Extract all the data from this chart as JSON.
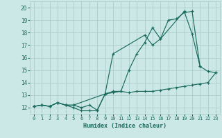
{
  "xlabel": "Humidex (Indice chaleur)",
  "xlim": [
    -0.5,
    23.5
  ],
  "ylim": [
    11.5,
    20.5
  ],
  "xticks": [
    0,
    1,
    2,
    3,
    4,
    5,
    6,
    7,
    8,
    9,
    10,
    11,
    12,
    13,
    14,
    15,
    16,
    17,
    18,
    19,
    20,
    21,
    22,
    23
  ],
  "yticks": [
    12,
    13,
    14,
    15,
    16,
    17,
    18,
    19,
    20
  ],
  "bg_color": "#cce8e6",
  "grid_color": "#aaccca",
  "line_color": "#1a6b5e",
  "line1_x": [
    0,
    1,
    2,
    3,
    4,
    5,
    6,
    7,
    8,
    9,
    10,
    11,
    12,
    13,
    14,
    15,
    16,
    17,
    18,
    19,
    20,
    21,
    22,
    23
  ],
  "line1_y": [
    12.1,
    12.2,
    12.1,
    12.4,
    12.2,
    12.0,
    11.75,
    11.75,
    11.75,
    13.1,
    13.3,
    13.3,
    15.0,
    16.3,
    17.2,
    18.4,
    17.5,
    19.0,
    19.1,
    19.6,
    19.7,
    15.3,
    14.9,
    14.8
  ],
  "line2_x": [
    0,
    1,
    2,
    3,
    4,
    5,
    6,
    7,
    8,
    9,
    10,
    11,
    12,
    13,
    14,
    15,
    16,
    17,
    18,
    19,
    20,
    21,
    22,
    23
  ],
  "line2_y": [
    12.1,
    12.2,
    12.1,
    12.4,
    12.2,
    12.2,
    12.0,
    12.2,
    11.8,
    13.1,
    13.2,
    13.3,
    13.2,
    13.3,
    13.3,
    13.3,
    13.4,
    13.5,
    13.6,
    13.7,
    13.8,
    13.9,
    14.0,
    14.8
  ],
  "line3_x": [
    0,
    1,
    2,
    3,
    4,
    5,
    9,
    10,
    14,
    15,
    16,
    19,
    20,
    21
  ],
  "line3_y": [
    12.1,
    12.2,
    12.1,
    12.4,
    12.2,
    12.2,
    13.1,
    16.3,
    17.8,
    17.0,
    17.5,
    19.7,
    17.9,
    15.3
  ]
}
